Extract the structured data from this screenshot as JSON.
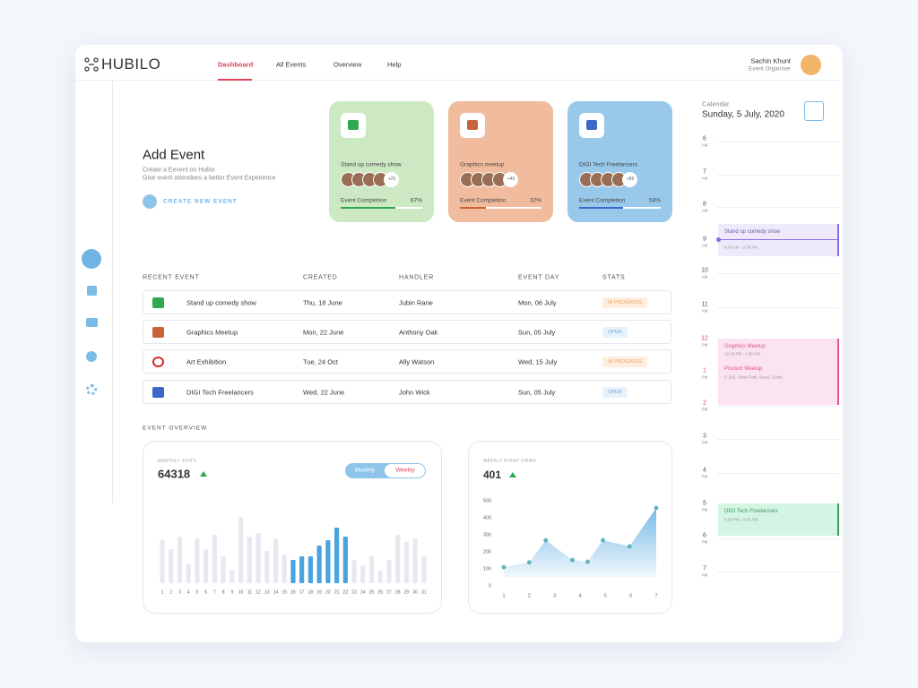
{
  "header": {
    "logo": "HUBILO",
    "nav": [
      "Dashboard",
      "All Events",
      "Overview",
      "Help"
    ],
    "user_name": "Sachin Khunt",
    "user_role": "Event Organiser"
  },
  "add_event": {
    "title": "Add Event",
    "lines": [
      "Create a Eevent on Hubio",
      "Give event attendees a better Event Experience"
    ],
    "button": "CREATE NEW EVENT"
  },
  "cards": [
    {
      "title": "Stand up comedy show",
      "more": "+25",
      "progress_label": "Event Completion",
      "value": 67,
      "value_label": "67%",
      "color": "#cde9c4",
      "bar_color": "#2fa84f"
    },
    {
      "title": "Graphics meetup",
      "more": "+45",
      "progress_label": "Event  Completion",
      "value": 32,
      "value_label": "32%",
      "color": "#f1bc9d",
      "bar_color": "#c9643a"
    },
    {
      "title": "DIGI Tech Freelancers",
      "more": "+89",
      "progress_label": "Event Completion",
      "value": 54,
      "value_label": "54%",
      "color": "#98c8ea",
      "bar_color": "#3d68c9"
    }
  ],
  "table": {
    "headers": [
      "RECENT EVENT",
      "CREATED",
      "HANDLER",
      "EVENT DAY",
      "STATS"
    ],
    "rows": [
      [
        "Stand up comedy show",
        "Thu, 18 June",
        "Jubin Rane",
        "Mon, 06 July",
        "IN PROGRESS"
      ],
      [
        "Graphics Meetup",
        "Mon, 22 June",
        "Anthony Oak",
        "Sun, 05 July",
        "OPEN"
      ],
      [
        "Art Exhibition",
        "Tue, 24 Oct",
        "Ally Watson",
        "Wed, 15 July",
        "IN PROGRESS"
      ],
      [
        "DIGI Tech Freelancers",
        "Wed, 22 June",
        "John Wick",
        "Sun, 05 July",
        "OPEN"
      ]
    ]
  },
  "overview_title": "EVENT OVERVIEW",
  "monthly": {
    "type": "bar",
    "label": "MONTHLY STATS",
    "total": 64318,
    "toggle": [
      "Monthly",
      "Weekly"
    ],
    "x": [
      1,
      2,
      3,
      4,
      5,
      6,
      7,
      8,
      9,
      10,
      11,
      12,
      13,
      14,
      15,
      16,
      17,
      18,
      19,
      20,
      21,
      22,
      23,
      24,
      25,
      26,
      27,
      28,
      29,
      30,
      31
    ],
    "values": [
      48,
      38,
      52,
      22,
      50,
      38,
      54,
      30,
      15,
      74,
      52,
      56,
      36,
      50,
      32,
      26,
      30,
      30,
      42,
      48,
      62,
      52,
      26,
      20,
      30,
      14,
      26,
      54,
      46,
      50,
      30
    ],
    "ylim": [
      0,
      80
    ],
    "color": "#e9e8f1",
    "highlight_color": "#4aa3df",
    "highlight_x": [
      16,
      17,
      18,
      19,
      20,
      21,
      22
    ]
  },
  "weekly": {
    "type": "line",
    "label": "WEEKLY EVENT VIEWS",
    "total": 401,
    "x": [
      1,
      2,
      2.65,
      3.7,
      4.3,
      4.9,
      5.95,
      7
    ],
    "values": [
      110,
      138,
      268,
      152,
      142,
      268,
      232,
      458
    ],
    "xlim": [
      1,
      7
    ],
    "xticks": [
      1,
      2,
      3,
      4,
      5,
      6,
      7
    ],
    "ylim": [
      0,
      500
    ],
    "yticks": [
      0,
      100,
      200,
      300,
      400,
      500
    ],
    "color": "#4aa3df",
    "grid": false
  },
  "calendar": {
    "label": "Calendar",
    "date": "Sunday, 5 July, 2020",
    "hours": [
      [
        "6",
        "AM"
      ],
      [
        "7",
        "AM"
      ],
      [
        "8",
        "AM"
      ],
      [
        "9",
        "AM"
      ],
      [
        "10",
        "AM"
      ],
      [
        "11",
        "AM"
      ],
      [
        "12",
        "PM"
      ],
      [
        "1",
        "PM"
      ],
      [
        "2",
        "PM"
      ],
      [
        "3",
        "PM"
      ],
      [
        "4",
        "PM"
      ],
      [
        "5",
        "PM"
      ],
      [
        "6",
        "PM"
      ],
      [
        "7",
        "PM"
      ]
    ],
    "events": [
      {
        "title": "Stand up comedy show",
        "time": "8:30 AM - 9:30 AM"
      },
      {
        "title": "Graphics Meetup",
        "time": "12:00 PM - 1:00 PM"
      },
      {
        "title": "Product Meetup",
        "time": "C-203, Silver Park, Seoul, South"
      },
      {
        "title": "DIGI Tech Freelancers",
        "time": "5:00 PM - 6:00 PM"
      }
    ]
  }
}
